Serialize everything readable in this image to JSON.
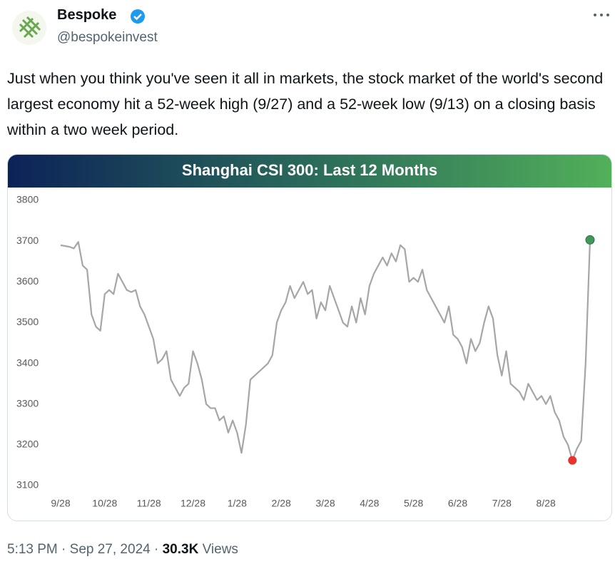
{
  "tweet": {
    "name": "Bespoke",
    "handle": "@bespokeinvest",
    "text": "Just when you think you've seen it all in markets, the stock market of the world's second largest economy hit a 52-week high (9/27) and a 52-week low (9/13) on a closing basis within a two week period.",
    "time": "5:13 PM",
    "separator": "·",
    "date": "Sep 27, 2024",
    "views_count": "30.3K",
    "views_label": "Views"
  },
  "chart_data": {
    "type": "line",
    "title": "Shanghai CSI 300: Last 12 Months",
    "categories": [
      "9/28",
      null,
      null,
      null,
      null,
      null,
      null,
      null,
      null,
      null,
      "10/28",
      null,
      null,
      null,
      null,
      null,
      null,
      null,
      null,
      null,
      "11/28",
      null,
      null,
      null,
      null,
      null,
      null,
      null,
      null,
      null,
      "12/28",
      null,
      null,
      null,
      null,
      null,
      null,
      null,
      null,
      null,
      "1/28",
      null,
      null,
      null,
      null,
      null,
      null,
      null,
      null,
      null,
      "2/28",
      null,
      null,
      null,
      null,
      null,
      null,
      null,
      null,
      null,
      "3/28",
      null,
      null,
      null,
      null,
      null,
      null,
      null,
      null,
      null,
      "4/28",
      null,
      null,
      null,
      null,
      null,
      null,
      null,
      null,
      null,
      "5/28",
      null,
      null,
      null,
      null,
      null,
      null,
      null,
      null,
      null,
      "6/28",
      null,
      null,
      null,
      null,
      null,
      null,
      null,
      null,
      null,
      "7/28",
      null,
      null,
      null,
      null,
      null,
      null,
      null,
      null,
      null,
      "8/28",
      null,
      null,
      null,
      null,
      null,
      null,
      null,
      null,
      null,
      null
    ],
    "series": [
      {
        "name": "CSI 300",
        "color": "#a6a6a6",
        "values": [
          3690,
          3688,
          3686,
          3682,
          3698,
          3640,
          3630,
          3520,
          3490,
          3480,
          3570,
          3580,
          3570,
          3620,
          3600,
          3580,
          3575,
          3580,
          3540,
          3520,
          3490,
          3460,
          3400,
          3410,
          3430,
          3360,
          3340,
          3320,
          3340,
          3350,
          3430,
          3400,
          3360,
          3300,
          3290,
          3290,
          3260,
          3270,
          3230,
          3260,
          3230,
          3180,
          3250,
          3360,
          3370,
          3380,
          3390,
          3400,
          3420,
          3500,
          3530,
          3550,
          3590,
          3560,
          3580,
          3600,
          3570,
          3580,
          3510,
          3550,
          3530,
          3590,
          3560,
          3530,
          3500,
          3490,
          3540,
          3500,
          3560,
          3520,
          3590,
          3620,
          3640,
          3660,
          3640,
          3670,
          3650,
          3690,
          3680,
          3600,
          3610,
          3600,
          3630,
          3580,
          3560,
          3540,
          3520,
          3500,
          3540,
          3470,
          3460,
          3440,
          3400,
          3460,
          3430,
          3450,
          3500,
          3540,
          3510,
          3420,
          3370,
          3430,
          3350,
          3340,
          3330,
          3310,
          3350,
          3330,
          3310,
          3320,
          3300,
          3320,
          3280,
          3260,
          3220,
          3200,
          3162,
          3190,
          3210,
          3400,
          3703
        ]
      }
    ],
    "ylim": [
      3100,
      3800
    ],
    "yticks": [
      3100,
      3200,
      3300,
      3400,
      3500,
      3600,
      3700,
      3800
    ],
    "low_marker_color": "#e8322a",
    "high_marker_color": "#3f9a5a"
  }
}
